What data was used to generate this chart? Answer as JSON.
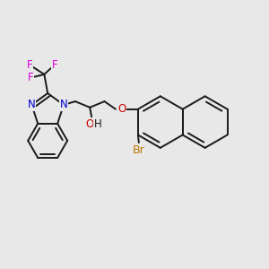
{
  "background_color": "#e8e8e8",
  "bond_color": "#1a1a1a",
  "bond_lw": 1.4,
  "atom_colors": {
    "N": "#0000cc",
    "O": "#cc0000",
    "F": "#dd00dd",
    "Br": "#bb7700",
    "H": "#1a1a1a"
  },
  "fs": 8.5,
  "xlim": [
    -1.55,
    1.55
  ],
  "ylim": [
    -1.35,
    1.5
  ]
}
